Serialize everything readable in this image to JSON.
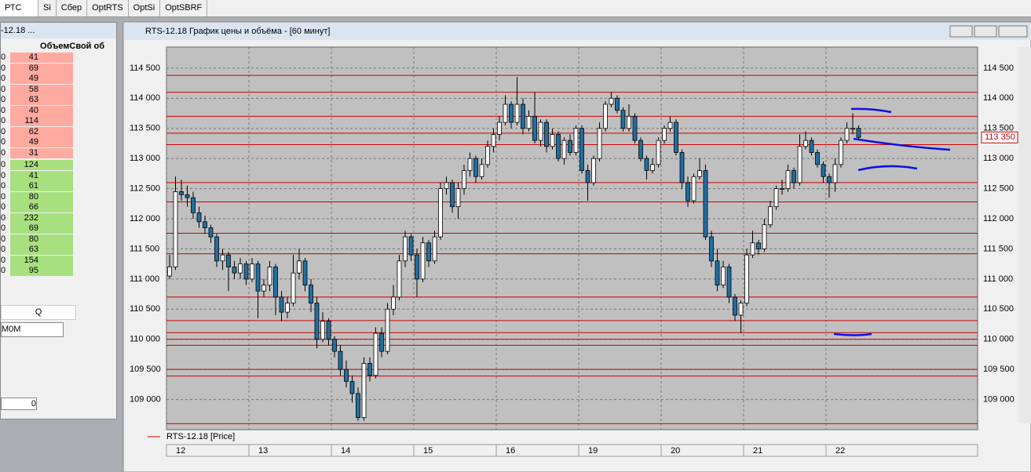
{
  "tabs": [
    "РТС",
    "Si",
    "Сбер",
    "OptRTS",
    "OptSi",
    "OptSBRF"
  ],
  "left_panel": {
    "title": "-12.18 ...",
    "header": "ОбъемСвой об",
    "ask_rows": [
      [
        "0",
        "41"
      ],
      [
        "0",
        "69"
      ],
      [
        "0",
        "49"
      ],
      [
        "0",
        "58"
      ],
      [
        "0",
        "63"
      ],
      [
        "0",
        "40"
      ],
      [
        "0",
        "114"
      ],
      [
        "0",
        "62"
      ],
      [
        "0",
        "49"
      ],
      [
        "0",
        "31"
      ]
    ],
    "bid_rows": [
      [
        "0",
        "124"
      ],
      [
        "0",
        "41"
      ],
      [
        "0",
        "61"
      ],
      [
        "0",
        "80"
      ],
      [
        "0",
        "66"
      ],
      [
        "0",
        "232"
      ],
      [
        "0",
        "69"
      ],
      [
        "0",
        "80"
      ],
      [
        "0",
        "63"
      ],
      [
        "0",
        "154"
      ],
      [
        "0",
        "95"
      ]
    ],
    "qty_label": "Q",
    "account": "M0M",
    "amount": "0"
  },
  "window": {
    "title": "RTS-12.18 График цены и объёма - [60 минут]"
  },
  "chart_data": {
    "type": "candlestick",
    "series_name": "RTS-12.18 [Price]",
    "color": "#cc0000",
    "up_color": "#ffffff",
    "down_color": "#1f6fa3",
    "grid": true,
    "ylim": [
      108500,
      114850
    ],
    "yticks": [
      {
        "value": 109000,
        "label": "109 000"
      },
      {
        "value": 109500,
        "label": "109 500"
      },
      {
        "value": 110000,
        "label": "110 000"
      },
      {
        "value": 110500,
        "label": "110 500"
      },
      {
        "value": 111000,
        "label": "111 000"
      },
      {
        "value": 111500,
        "label": "111 500"
      },
      {
        "value": 112000,
        "label": "112 000"
      },
      {
        "value": 112500,
        "label": "112 500"
      },
      {
        "value": 113000,
        "label": "113 000"
      },
      {
        "value": 113500,
        "label": "113 500"
      },
      {
        "value": 114000,
        "label": "114 000"
      },
      {
        "value": 114500,
        "label": "114 500"
      }
    ],
    "xticks": [
      {
        "value": 0,
        "label": "12"
      },
      {
        "value": 14,
        "label": "13"
      },
      {
        "value": 28,
        "label": "14"
      },
      {
        "value": 42,
        "label": "15"
      },
      {
        "value": 56,
        "label": "16"
      },
      {
        "value": 70,
        "label": "19"
      },
      {
        "value": 84,
        "label": "20"
      },
      {
        "value": 98,
        "label": "21"
      },
      {
        "value": 112,
        "label": "22"
      }
    ],
    "levels": [
      114380,
      114100,
      113700,
      113420,
      113230,
      112600,
      112280,
      111760,
      111420,
      110700,
      110310,
      110110,
      110000,
      109900,
      109500,
      109390,
      108600
    ],
    "current_price": {
      "value": 113350,
      "label": "113 350"
    },
    "candles": [
      [
        111050,
        111400,
        111000,
        111200
      ],
      [
        111200,
        112700,
        111150,
        112450
      ],
      [
        112450,
        112650,
        112300,
        112400
      ],
      [
        112400,
        112550,
        112200,
        112350
      ],
      [
        112350,
        112450,
        112000,
        112100
      ],
      [
        112100,
        112200,
        111850,
        111950
      ],
      [
        111950,
        112050,
        111750,
        111850
      ],
      [
        111850,
        111900,
        111600,
        111700
      ],
      [
        111700,
        111750,
        111200,
        111300
      ],
      [
        111300,
        111500,
        111150,
        111400
      ],
      [
        111400,
        111450,
        110800,
        111200
      ],
      [
        111200,
        111300,
        111000,
        111100
      ],
      [
        111100,
        111350,
        111000,
        111250
      ],
      [
        111250,
        111300,
        110900,
        111000
      ],
      [
        111000,
        111350,
        110950,
        111250
      ],
      [
        111250,
        111300,
        110350,
        110800
      ],
      [
        110800,
        111000,
        110700,
        110900
      ],
      [
        110900,
        111300,
        110800,
        111200
      ],
      [
        111200,
        111250,
        110400,
        110700
      ],
      [
        110700,
        110800,
        110300,
        110450
      ],
      [
        110450,
        110700,
        110350,
        110600
      ],
      [
        110600,
        111400,
        110550,
        111100
      ],
      [
        111100,
        111500,
        111000,
        111300
      ],
      [
        111300,
        111350,
        110800,
        110900
      ],
      [
        110900,
        111000,
        110450,
        110600
      ],
      [
        110600,
        110700,
        109850,
        110000
      ],
      [
        110000,
        110450,
        109950,
        110300
      ],
      [
        110300,
        110350,
        109900,
        110000
      ],
      [
        110000,
        110050,
        109700,
        109800
      ],
      [
        109800,
        109900,
        109400,
        109500
      ],
      [
        109500,
        109650,
        109200,
        109300
      ],
      [
        109300,
        109400,
        108950,
        109100
      ],
      [
        109100,
        109200,
        108650,
        108700
      ],
      [
        108700,
        109700,
        108650,
        109600
      ],
      [
        109600,
        109700,
        109300,
        109400
      ],
      [
        109400,
        110200,
        109350,
        110100
      ],
      [
        110100,
        110200,
        109700,
        109800
      ],
      [
        109800,
        110600,
        109750,
        110500
      ],
      [
        110500,
        110900,
        110400,
        110700
      ],
      [
        110700,
        111400,
        110650,
        111300
      ],
      [
        111300,
        111800,
        111200,
        111700
      ],
      [
        111700,
        111750,
        111300,
        111400
      ],
      [
        111400,
        111500,
        110700,
        111000
      ],
      [
        111000,
        111700,
        110950,
        111600
      ],
      [
        111600,
        111650,
        111200,
        111300
      ],
      [
        111300,
        111800,
        111250,
        111700
      ],
      [
        111700,
        112600,
        111650,
        112500
      ],
      [
        112500,
        112700,
        112400,
        112600
      ],
      [
        112600,
        112650,
        112100,
        112200
      ],
      [
        112200,
        112600,
        112000,
        112500
      ],
      [
        112500,
        112900,
        112400,
        112800
      ],
      [
        112800,
        113100,
        112700,
        113000
      ],
      [
        113000,
        113050,
        112600,
        112700
      ],
      [
        112700,
        113000,
        112650,
        112900
      ],
      [
        112900,
        113300,
        112850,
        113200
      ],
      [
        113200,
        113500,
        113100,
        113400
      ],
      [
        113400,
        113700,
        113300,
        113600
      ],
      [
        113600,
        114050,
        113550,
        113900
      ],
      [
        113900,
        113950,
        113500,
        113600
      ],
      [
        113600,
        114350,
        113550,
        113900
      ],
      [
        113900,
        114000,
        113400,
        113500
      ],
      [
        113500,
        113800,
        113450,
        113700
      ],
      [
        113700,
        114100,
        113250,
        113300
      ],
      [
        113300,
        113650,
        113200,
        113600
      ],
      [
        113600,
        113650,
        113100,
        113200
      ],
      [
        113200,
        113500,
        113150,
        113400
      ],
      [
        113400,
        113450,
        112950,
        113000
      ],
      [
        113000,
        113350,
        112900,
        113300
      ],
      [
        113300,
        113400,
        113050,
        113100
      ],
      [
        113100,
        113550,
        113050,
        113500
      ],
      [
        113500,
        113550,
        112750,
        112800
      ],
      [
        112800,
        112900,
        112300,
        112600
      ],
      [
        112600,
        113050,
        112550,
        113000
      ],
      [
        113000,
        113600,
        112950,
        113500
      ],
      [
        113500,
        113950,
        113450,
        113900
      ],
      [
        113900,
        114100,
        113850,
        114000
      ],
      [
        114000,
        114050,
        113750,
        113800
      ],
      [
        113800,
        113850,
        113450,
        113500
      ],
      [
        113500,
        113900,
        113450,
        113700
      ],
      [
        113700,
        113750,
        113250,
        113300
      ],
      [
        113300,
        113350,
        112950,
        113000
      ],
      [
        113000,
        113050,
        112650,
        112800
      ],
      [
        112800,
        113000,
        112750,
        112900
      ],
      [
        112900,
        113350,
        112850,
        113300
      ],
      [
        113300,
        113550,
        113250,
        113500
      ],
      [
        113500,
        113700,
        113450,
        113600
      ],
      [
        113600,
        113650,
        113050,
        113100
      ],
      [
        113100,
        113150,
        112500,
        112600
      ],
      [
        112600,
        112700,
        112200,
        112300
      ],
      [
        112300,
        112750,
        112250,
        112700
      ],
      [
        112700,
        113000,
        112650,
        112800
      ],
      [
        112800,
        112900,
        111650,
        111700
      ],
      [
        111700,
        111800,
        111200,
        111300
      ],
      [
        111300,
        111500,
        110800,
        110900
      ],
      [
        110900,
        111300,
        110850,
        111200
      ],
      [
        111200,
        111250,
        110600,
        110700
      ],
      [
        110700,
        110750,
        110300,
        110400
      ],
      [
        110400,
        110650,
        110100,
        110600
      ],
      [
        110600,
        111500,
        110550,
        111400
      ],
      [
        111400,
        111800,
        111350,
        111600
      ],
      [
        111600,
        111650,
        111400,
        111500
      ],
      [
        111500,
        112000,
        111450,
        111900
      ],
      [
        111900,
        112300,
        111850,
        112200
      ],
      [
        112200,
        112550,
        112150,
        112500
      ],
      [
        112500,
        112650,
        112400,
        112500
      ],
      [
        112500,
        112900,
        112450,
        112800
      ],
      [
        112800,
        112850,
        112500,
        112600
      ],
      [
        112600,
        113400,
        112550,
        113200
      ],
      [
        113200,
        113450,
        113150,
        113300
      ],
      [
        113300,
        113350,
        113050,
        113100
      ],
      [
        113100,
        113150,
        112850,
        112900
      ],
      [
        112900,
        112950,
        112600,
        112700
      ],
      [
        112700,
        112750,
        112350,
        112600
      ],
      [
        112600,
        113000,
        112450,
        112900
      ],
      [
        112900,
        113350,
        112850,
        113300
      ],
      [
        113300,
        113600,
        113250,
        113500
      ],
      [
        113500,
        113750,
        113400,
        113500
      ],
      [
        113500,
        113550,
        113300,
        113350
      ]
    ]
  }
}
